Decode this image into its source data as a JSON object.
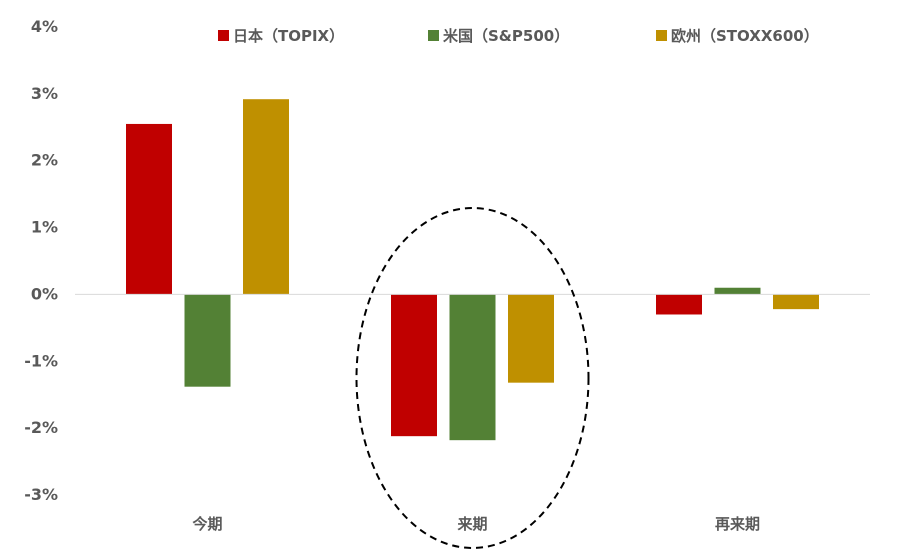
{
  "chart_data": {
    "type": "bar",
    "categories": [
      "今期",
      "来期",
      "再来期"
    ],
    "series": [
      {
        "name": "日本（TOPIX）",
        "color": "#c00000",
        "values": [
          2.55,
          -2.12,
          -0.3
        ]
      },
      {
        "name": "米国（S&P500）",
        "color": "#538135",
        "values": [
          -1.38,
          -2.18,
          0.1
        ]
      },
      {
        "name": "欧州（STOXX600）",
        "color": "#bf9000",
        "values": [
          2.92,
          -1.32,
          -0.22
        ]
      }
    ],
    "ylim": [
      -3,
      4
    ],
    "yticks": [
      4,
      3,
      2,
      1,
      0,
      -1,
      -2,
      -3
    ],
    "ytick_labels": [
      "4%",
      "3%",
      "2%",
      "1%",
      "0%",
      "-1%",
      "-2%",
      "-3%"
    ],
    "grid": false,
    "legend_position": "top",
    "annotation": {
      "shape": "dashed-ellipse",
      "category": "来期"
    }
  }
}
